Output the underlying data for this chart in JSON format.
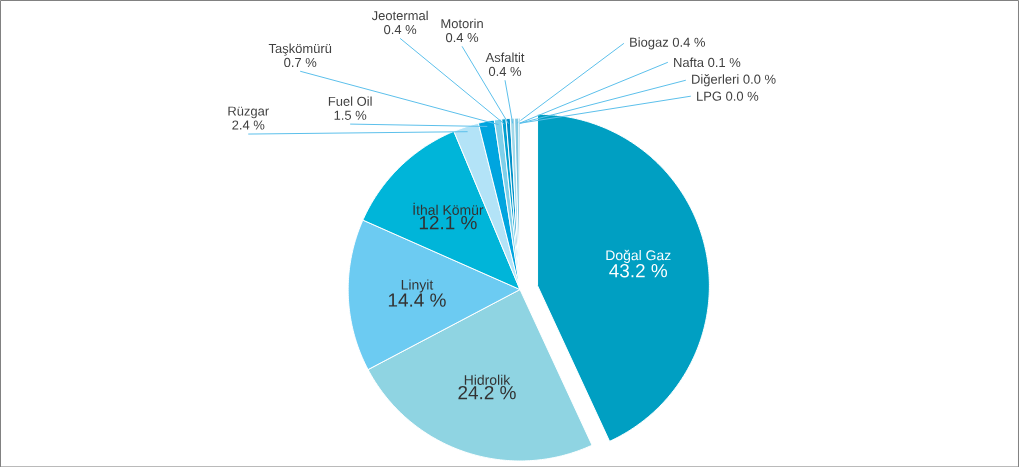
{
  "chart_data": {
    "type": "pie",
    "categories": [
      "Doğal Gaz",
      "Hidrolik",
      "Linyit",
      "İthal Kömür",
      "Rüzgar",
      "Fuel Oil",
      "Taşkömürü",
      "Jeotermal",
      "Motorin",
      "Asfaltit",
      "Biogaz",
      "Nafta",
      "Diğerleri",
      "LPG"
    ],
    "values": [
      43.2,
      24.2,
      14.4,
      12.1,
      2.4,
      1.5,
      0.7,
      0.4,
      0.4,
      0.4,
      0.4,
      0.1,
      0.0,
      0.0
    ],
    "value_labels": [
      "43.2 %",
      "24.2 %",
      "14.4 %",
      "12.1 %",
      "2.4 %",
      "1.5 %",
      "0.7 %",
      "0.4 %",
      "0.4 %",
      "0.4 %",
      "0.4 %",
      "0.1 %",
      "0.0 %",
      "0.0 %"
    ],
    "colors": [
      "#009fc2",
      "#8fd4e2",
      "#6ccbf2",
      "#00b5d9",
      "#b3e3f7",
      "#00a5df",
      "#7fd0ea",
      "#00a0d0",
      "#0090c8",
      "#a0d8ea",
      "#80c8e0",
      "#0098c8",
      "#a8a8a8",
      "#60b8e0"
    ]
  }
}
